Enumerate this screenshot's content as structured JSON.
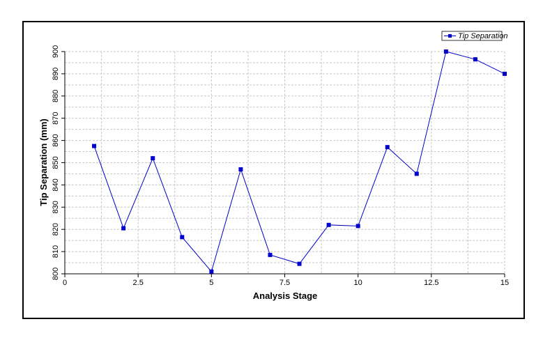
{
  "chart_data": {
    "type": "line",
    "x_label": "Analysis Stage",
    "y_label": "Tip Separation (mm)",
    "x": [
      1,
      2,
      3,
      4,
      5,
      6,
      7,
      8,
      9,
      10,
      11,
      12,
      13,
      14,
      15
    ],
    "series": [
      {
        "name": "Tip Separation",
        "color": "#0000cc",
        "values": [
          857.5,
          820.5,
          852,
          816.5,
          801,
          847,
          808.5,
          804.5,
          822,
          821.5,
          857,
          845,
          900,
          896.5,
          890
        ]
      }
    ],
    "xlim": [
      0,
      15
    ],
    "xticks": [
      0,
      2.5,
      5,
      7.5,
      10,
      12.5,
      15
    ],
    "ylim": [
      800,
      900
    ],
    "yticks": [
      800,
      810,
      820,
      830,
      840,
      850,
      860,
      870,
      880,
      890,
      900
    ],
    "grid": true,
    "legend": "top-right"
  }
}
